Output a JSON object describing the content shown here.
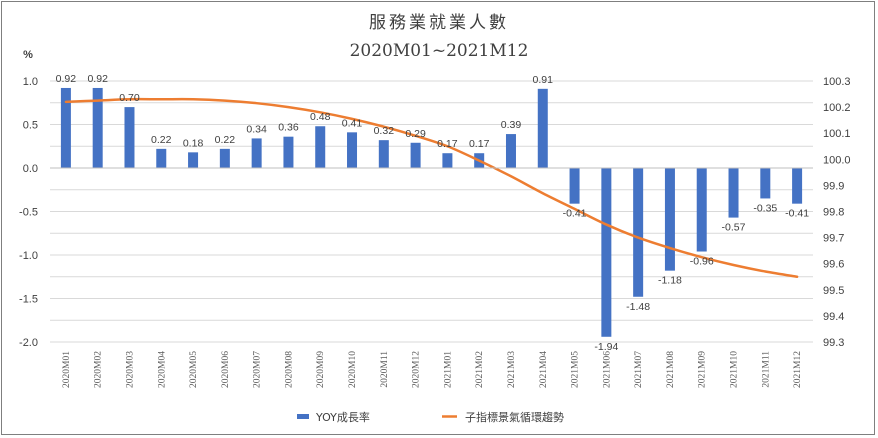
{
  "chart_data": {
    "type": "bar",
    "title": "服務業就業人數",
    "subtitle": "2020M01~2021M12",
    "y_unit": "%",
    "categories": [
      "2020M01",
      "2020M02",
      "2020M03",
      "2020M04",
      "2020M05",
      "2020M06",
      "2020M07",
      "2020M08",
      "2020M09",
      "2020M10",
      "2020M11",
      "2020M12",
      "2021M01",
      "2021M02",
      "2021M03",
      "2021M04",
      "2021M05",
      "2021M06",
      "2021M07",
      "2021M08",
      "2021M09",
      "2021M10",
      "2021M11",
      "2021M12"
    ],
    "ylim": [
      -2.0,
      1.0
    ],
    "y_ticks": [
      "1.0",
      "0.5",
      "0.0",
      "-0.5",
      "-1.0",
      "-1.5",
      "-2.0"
    ],
    "y2lim": [
      99.3,
      100.3
    ],
    "y2_ticks": [
      "100.3",
      "100.2",
      "100.1",
      "100.0",
      "99.9",
      "99.8",
      "99.7",
      "99.6",
      "99.5",
      "99.4",
      "99.3"
    ],
    "series": [
      {
        "name": "YOY成長率",
        "type": "bar",
        "axis": "left",
        "color": "#4472c4",
        "values": [
          0.92,
          0.92,
          0.7,
          0.22,
          0.18,
          0.22,
          0.34,
          0.36,
          0.48,
          0.41,
          0.32,
          0.29,
          0.17,
          0.17,
          0.39,
          0.91,
          -0.41,
          -1.94,
          -1.48,
          -1.18,
          -0.96,
          -0.57,
          -0.35,
          -0.41
        ],
        "labels": [
          "0.92",
          "0.92",
          "0.70",
          "0.22",
          "0.18",
          "0.22",
          "0.34",
          "0.36",
          "0.48",
          "0.41",
          "0.32",
          "0.29",
          "0.17",
          "0.17",
          "0.39",
          "0.91",
          "-0.41",
          "-1.94",
          "-1.48",
          "-1.18",
          "-0.96",
          "-0.57",
          "-0.35",
          "-0.41"
        ]
      },
      {
        "name": "子指標景氣循環趨勢",
        "type": "line",
        "axis": "right",
        "color": "#ed7d31",
        "values": [
          100.22,
          100.225,
          100.23,
          100.23,
          100.23,
          100.225,
          100.215,
          100.2,
          100.18,
          100.155,
          100.125,
          100.09,
          100.05,
          99.995,
          99.935,
          99.87,
          99.81,
          99.75,
          99.7,
          99.66,
          99.625,
          99.595,
          99.57,
          99.55
        ]
      }
    ],
    "grid": true,
    "legend_position": "bottom"
  }
}
